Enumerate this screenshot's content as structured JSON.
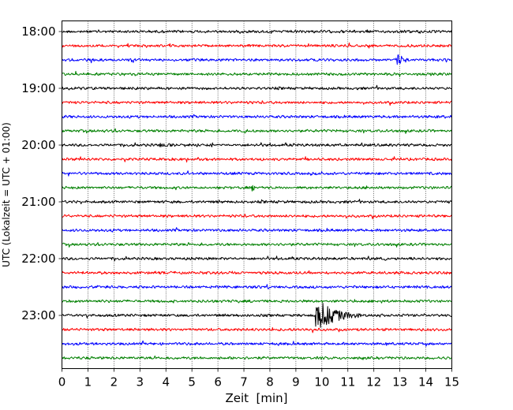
{
  "chart_data": {
    "type": "line",
    "title": "",
    "xlabel": "Zeit  [min]",
    "ylabel": "UTC (Lokalzeit = UTC + 01:00)",
    "xlim": [
      0,
      15
    ],
    "x_ticks": [
      "0",
      "1",
      "2",
      "3",
      "4",
      "5",
      "6",
      "7",
      "8",
      "9",
      "10",
      "11",
      "12",
      "13",
      "14",
      "15"
    ],
    "y_tick_labels": [
      "18:00",
      "19:00",
      "20:00",
      "21:00",
      "22:00",
      "23:00"
    ],
    "x_grid": true,
    "trace_colors": [
      "#000000",
      "#ff0000",
      "#0000ff",
      "#008000"
    ],
    "rows": [
      {
        "start": "18:00",
        "color": "#000000",
        "events": []
      },
      {
        "start": "18:15",
        "color": "#ff0000",
        "events": []
      },
      {
        "start": "18:30",
        "color": "#0000ff",
        "events": [
          {
            "t": 12.9,
            "amp": 8,
            "dur": 0.8
          }
        ]
      },
      {
        "start": "18:45",
        "color": "#008000",
        "events": []
      },
      {
        "start": "19:00",
        "color": "#000000",
        "events": []
      },
      {
        "start": "19:15",
        "color": "#ff0000",
        "events": []
      },
      {
        "start": "19:30",
        "color": "#0000ff",
        "events": []
      },
      {
        "start": "19:45",
        "color": "#008000",
        "events": [
          {
            "t": 7.0,
            "amp": 3,
            "dur": 0.6
          }
        ]
      },
      {
        "start": "20:00",
        "color": "#000000",
        "events": [
          {
            "t": 3.8,
            "amp": 3,
            "dur": 0.8
          },
          {
            "t": 5.8,
            "amp": 3,
            "dur": 0.3
          }
        ]
      },
      {
        "start": "20:15",
        "color": "#ff0000",
        "events": []
      },
      {
        "start": "20:30",
        "color": "#0000ff",
        "events": []
      },
      {
        "start": "20:45",
        "color": "#008000",
        "events": [
          {
            "t": 7.3,
            "amp": 3,
            "dur": 0.6
          }
        ]
      },
      {
        "start": "21:00",
        "color": "#000000",
        "events": []
      },
      {
        "start": "21:15",
        "color": "#ff0000",
        "events": []
      },
      {
        "start": "21:30",
        "color": "#0000ff",
        "events": []
      },
      {
        "start": "21:45",
        "color": "#008000",
        "events": []
      },
      {
        "start": "22:00",
        "color": "#000000",
        "events": [
          {
            "t": 12.4,
            "amp": 3,
            "dur": 0.3
          }
        ]
      },
      {
        "start": "22:15",
        "color": "#ff0000",
        "events": []
      },
      {
        "start": "22:30",
        "color": "#0000ff",
        "events": [
          {
            "t": 7.9,
            "amp": 4,
            "dur": 0.3
          }
        ]
      },
      {
        "start": "22:45",
        "color": "#008000",
        "events": []
      },
      {
        "start": "23:00",
        "color": "#000000",
        "events": [
          {
            "t": 9.8,
            "amp": 15,
            "dur": 3.0
          }
        ]
      },
      {
        "start": "23:15",
        "color": "#ff0000",
        "events": []
      },
      {
        "start": "23:30",
        "color": "#0000ff",
        "events": []
      },
      {
        "start": "23:45",
        "color": "#008000",
        "events": []
      }
    ]
  }
}
